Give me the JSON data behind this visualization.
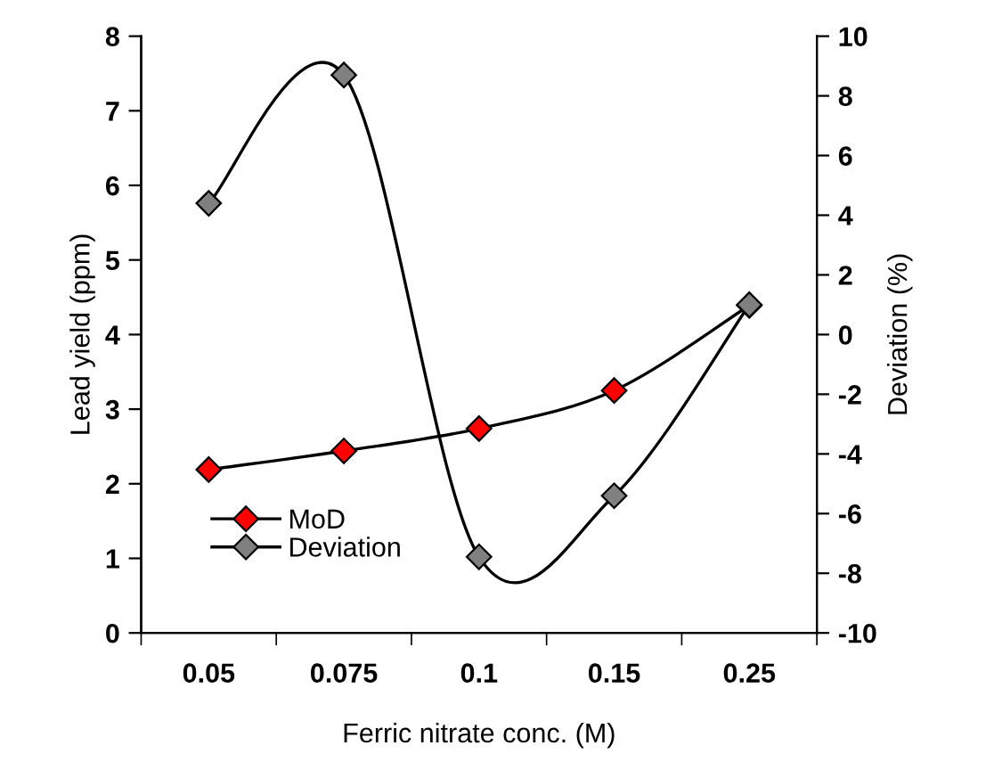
{
  "chart_data": {
    "type": "line",
    "xlabel": "Ferric nitrate conc. (M)",
    "ylabel": "Lead yield (ppm)",
    "y2label": "Deviation (%)",
    "categories": [
      "0.05",
      "0.075",
      "0.1",
      "0.15",
      "0.25"
    ],
    "series": [
      {
        "name": "MoD",
        "color": "#ff0000",
        "values": [
          2.19,
          2.44,
          2.74,
          3.25,
          4.39
        ]
      },
      {
        "name": "Deviation",
        "color": "#808080",
        "axis": "y2",
        "values": [
          4.4,
          8.7,
          -7.45,
          -5.4,
          1.0
        ]
      }
    ],
    "ylim": [
      0,
      8
    ],
    "yticks": [
      0,
      1,
      2,
      3,
      4,
      5,
      6,
      7,
      8
    ],
    "y2lim": [
      -10,
      10
    ],
    "y2ticks": [
      -10,
      -8,
      -6,
      -4,
      -2,
      0,
      2,
      4,
      6,
      8,
      10
    ],
    "marker": "diamond",
    "line_style": "solid",
    "grid": false,
    "legend": "bottom left"
  }
}
